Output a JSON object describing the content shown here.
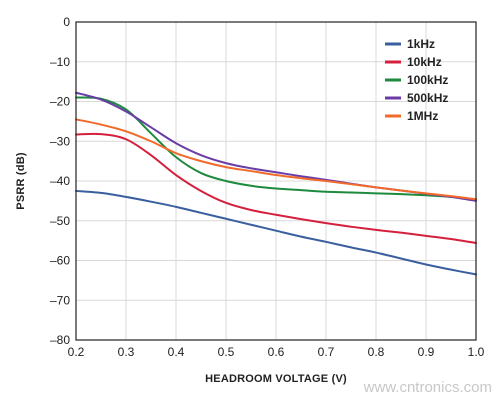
{
  "chart_data": {
    "type": "line",
    "title": "",
    "xlabel": "HEADROOM VOLTAGE (V)",
    "ylabel": "PSRR (dB)",
    "xlim": [
      0.2,
      1.0
    ],
    "ylim": [
      -80,
      0
    ],
    "xticks": [
      "0.2",
      "0.3",
      "0.4",
      "0.5",
      "0.6",
      "0.7",
      "0.8",
      "0.9",
      "1.0"
    ],
    "yticks": [
      "0",
      "–10",
      "–20",
      "–30",
      "–40",
      "–50",
      "–60",
      "–70",
      "–80"
    ],
    "grid": true,
    "legend_position": "top-right",
    "x": [
      0.2,
      0.25,
      0.3,
      0.35,
      0.4,
      0.45,
      0.5,
      0.55,
      0.6,
      0.65,
      0.7,
      0.75,
      0.8,
      0.85,
      0.9,
      0.95,
      1.0
    ],
    "series": [
      {
        "name": "1kHz",
        "color": "#3a5f9e",
        "values": [
          -42.5,
          -43.0,
          -44.0,
          -45.2,
          -46.5,
          -48.0,
          -49.5,
          -51.0,
          -52.5,
          -54.0,
          -55.3,
          -56.7,
          -58.0,
          -59.5,
          -61.0,
          -62.3,
          -63.5
        ]
      },
      {
        "name": "10kHz",
        "color": "#d4203c",
        "values": [
          -28.3,
          -28.2,
          -29.5,
          -33.5,
          -38.5,
          -42.5,
          -45.5,
          -47.3,
          -48.5,
          -49.6,
          -50.6,
          -51.5,
          -52.3,
          -53.0,
          -53.8,
          -54.6,
          -55.6
        ]
      },
      {
        "name": "100kHz",
        "color": "#1e8a3e",
        "values": [
          -19.0,
          -19.3,
          -22.0,
          -28.0,
          -34.0,
          -38.0,
          -40.0,
          -41.2,
          -41.9,
          -42.3,
          -42.7,
          -42.9,
          -43.1,
          -43.3,
          -43.6,
          -44.0,
          -44.8
        ]
      },
      {
        "name": "500kHz",
        "color": "#6a3ca8",
        "values": [
          -17.8,
          -19.5,
          -22.5,
          -26.5,
          -30.5,
          -33.5,
          -35.5,
          -36.8,
          -37.8,
          -38.8,
          -39.7,
          -40.7,
          -41.6,
          -42.4,
          -43.2,
          -44.0,
          -45.0
        ]
      },
      {
        "name": "1MHz",
        "color": "#f26a2a",
        "values": [
          -24.5,
          -25.8,
          -27.5,
          -30.0,
          -33.0,
          -35.0,
          -36.5,
          -37.5,
          -38.5,
          -39.3,
          -40.0,
          -40.8,
          -41.6,
          -42.4,
          -43.1,
          -43.8,
          -44.6
        ]
      }
    ]
  },
  "watermark": "www.cntronics.com"
}
